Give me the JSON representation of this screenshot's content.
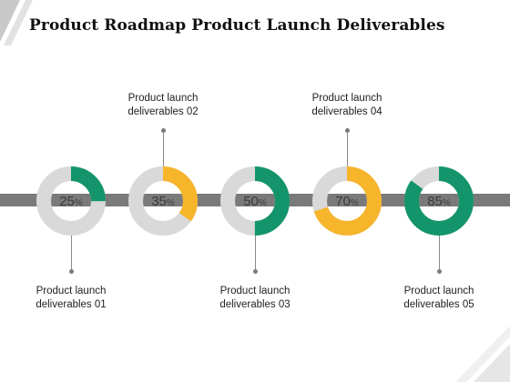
{
  "title": "Product Roadmap Product Launch Deliverables",
  "percent_symbol": "%",
  "colors": {
    "green": "#14946B",
    "yellow": "#F7B52C",
    "track": "#D9D9D9",
    "bar": "#7A7A7A"
  },
  "milestones": [
    {
      "value": 25,
      "value_label": "25",
      "color": "green",
      "label_line1": "Product launch",
      "label_line2": "deliverables 01",
      "label_position": "bottom"
    },
    {
      "value": 35,
      "value_label": "35",
      "color": "yellow",
      "label_line1": "Product launch",
      "label_line2": "deliverables 02",
      "label_position": "top"
    },
    {
      "value": 50,
      "value_label": "50",
      "color": "green",
      "label_line1": "Product launch",
      "label_line2": "deliverables 03",
      "label_position": "bottom"
    },
    {
      "value": 70,
      "value_label": "70",
      "color": "yellow",
      "label_line1": "Product launch",
      "label_line2": "deliverables 04",
      "label_position": "top"
    },
    {
      "value": 85,
      "value_label": "85",
      "color": "green",
      "label_line1": "Product launch",
      "label_line2": "deliverables 05",
      "label_position": "bottom"
    }
  ]
}
